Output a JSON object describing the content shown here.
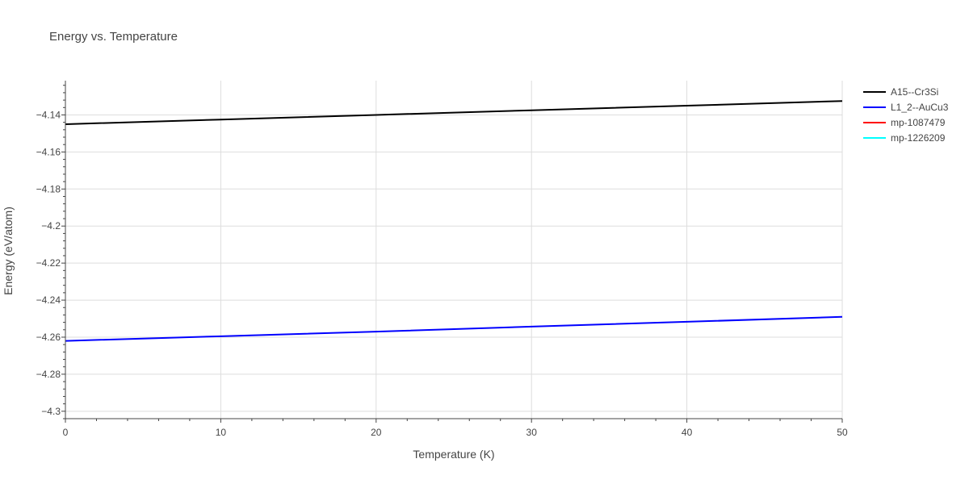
{
  "chart_data": {
    "type": "line",
    "title": "Energy vs. Temperature",
    "xlabel": "Temperature (K)",
    "ylabel": "Energy (eV/atom)",
    "xlim": [
      0,
      50
    ],
    "ylim": [
      -4.304,
      -4.1215
    ],
    "grid": true,
    "legend_position": "top-right",
    "x_ticks": [
      0,
      10,
      20,
      30,
      40,
      50
    ],
    "x_tick_labels": [
      "0",
      "10",
      "20",
      "30",
      "40",
      "50"
    ],
    "y_ticks": [
      -4.14,
      -4.16,
      -4.18,
      -4.2,
      -4.22,
      -4.24,
      -4.26,
      -4.28,
      -4.3
    ],
    "y_tick_labels": [
      "−4.14",
      "−4.16",
      "−4.18",
      "−4.2",
      "−4.22",
      "−4.24",
      "−4.26",
      "−4.28",
      "−4.3"
    ],
    "series": [
      {
        "name": "A15--Cr3Si",
        "color": "#000000",
        "x": [
          0,
          10,
          20,
          30,
          40,
          50
        ],
        "y": [
          -4.145,
          -4.1425,
          -4.14,
          -4.1375,
          -4.135,
          -4.1325
        ]
      },
      {
        "name": "L1_2--AuCu3",
        "color": "#0000ff",
        "x": [
          0,
          10,
          20,
          30,
          40,
          50
        ],
        "y": [
          -4.262,
          -4.2595,
          -4.257,
          -4.2543,
          -4.2517,
          -4.249
        ]
      },
      {
        "name": "mp-1087479",
        "color": "#ff0000",
        "x": [],
        "y": []
      },
      {
        "name": "mp-1226209",
        "color": "#00ffff",
        "x": [],
        "y": []
      }
    ]
  }
}
